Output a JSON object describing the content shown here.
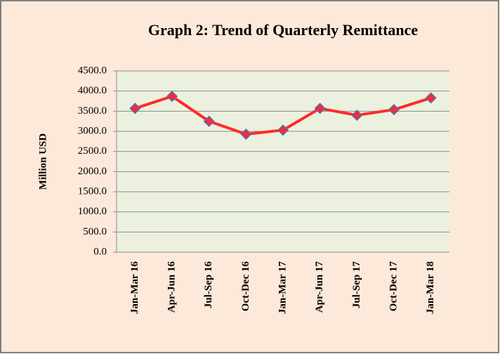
{
  "chart_data": {
    "type": "line",
    "title": "Graph 2: Trend of Quarterly Remittance",
    "y_label": "Million USD",
    "categories": [
      "Jan-Mar 16",
      "Apr-Jun 16",
      "Jul-Sep 16",
      "Oct-Dec 16",
      "Jan-Mar 17",
      "Apr-Jun 17",
      "Jul-Sep 17",
      "Oct-Dec 17",
      "Jan-Mar 18"
    ],
    "values": [
      3570,
      3870,
      3250,
      2930,
      3030,
      3570,
      3400,
      3540,
      3830
    ],
    "color": "#ff2a2a",
    "marker_edge_color": "#4f6fbf",
    "ylim": [
      0,
      4500
    ],
    "yticks": [
      {
        "value": 0,
        "label": "0.0"
      },
      {
        "value": 500,
        "label": "500.0"
      },
      {
        "value": 1000,
        "label": "1000.0"
      },
      {
        "value": 1500,
        "label": "1500.0"
      },
      {
        "value": 2000,
        "label": "2000.0"
      },
      {
        "value": 2500,
        "label": "2500.0"
      },
      {
        "value": 3000,
        "label": "3000.0"
      },
      {
        "value": 3500,
        "label": "3500.0"
      },
      {
        "value": 4000,
        "label": "4000.0"
      },
      {
        "value": 4500,
        "label": "4500.0"
      }
    ],
    "grid": true
  }
}
